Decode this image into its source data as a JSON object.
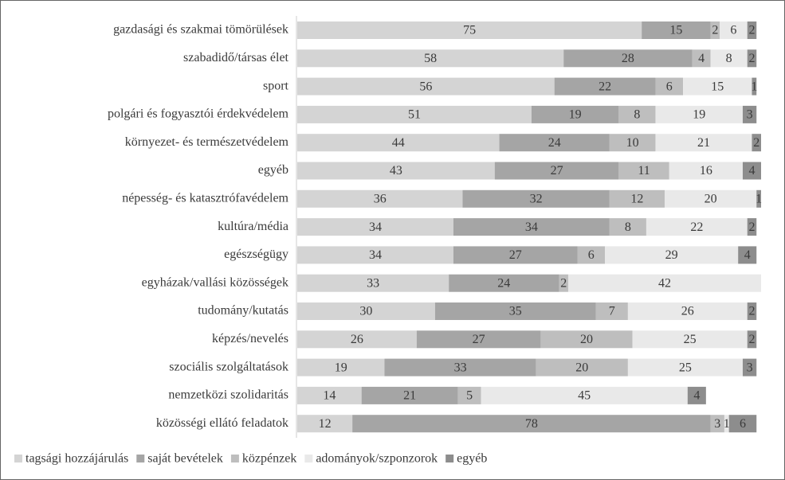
{
  "chart_data": {
    "type": "stacked-bar-horizontal",
    "categories": [
      "gazdasági és szakmai tömörülések",
      "szabadidő/társas élet",
      "sport",
      "polgári és fogyasztói érdekvédelem",
      "környezet- és természetvédelem",
      "egyéb",
      "népesség- és katasztrófavédelem",
      "kultúra/média",
      "egészségügy",
      "egyházak/vallási közösségek",
      "tudomány/kutatás",
      "képzés/nevelés",
      "szociális szolgáltatások",
      "nemzetközi szolidaritás",
      "közösségi ellátó feladatok"
    ],
    "series": [
      {
        "name": "tagsági hozzájárulás",
        "color": "#d4d4d4",
        "values": [
          75,
          58,
          56,
          51,
          44,
          43,
          36,
          34,
          34,
          33,
          30,
          26,
          19,
          14,
          12
        ]
      },
      {
        "name": "saját bevételek",
        "color": "#a5a5a5",
        "values": [
          15,
          28,
          22,
          19,
          24,
          27,
          32,
          34,
          27,
          24,
          35,
          27,
          33,
          21,
          78
        ]
      },
      {
        "name": "közpénzek",
        "color": "#bebebe",
        "values": [
          2,
          4,
          6,
          8,
          10,
          11,
          12,
          8,
          6,
          2,
          7,
          20,
          20,
          5,
          3
        ]
      },
      {
        "name": "adományok/szponzorok",
        "color": "#e9e9e9",
        "values": [
          6,
          8,
          15,
          19,
          21,
          16,
          20,
          22,
          29,
          42,
          26,
          25,
          25,
          45,
          1
        ]
      },
      {
        "name": "egyéb",
        "color": "#8d8d8d",
        "values": [
          2,
          2,
          1,
          3,
          2,
          4,
          1,
          2,
          4,
          null,
          2,
          2,
          3,
          4,
          6
        ]
      }
    ],
    "xlim": [
      0,
      101
    ]
  }
}
